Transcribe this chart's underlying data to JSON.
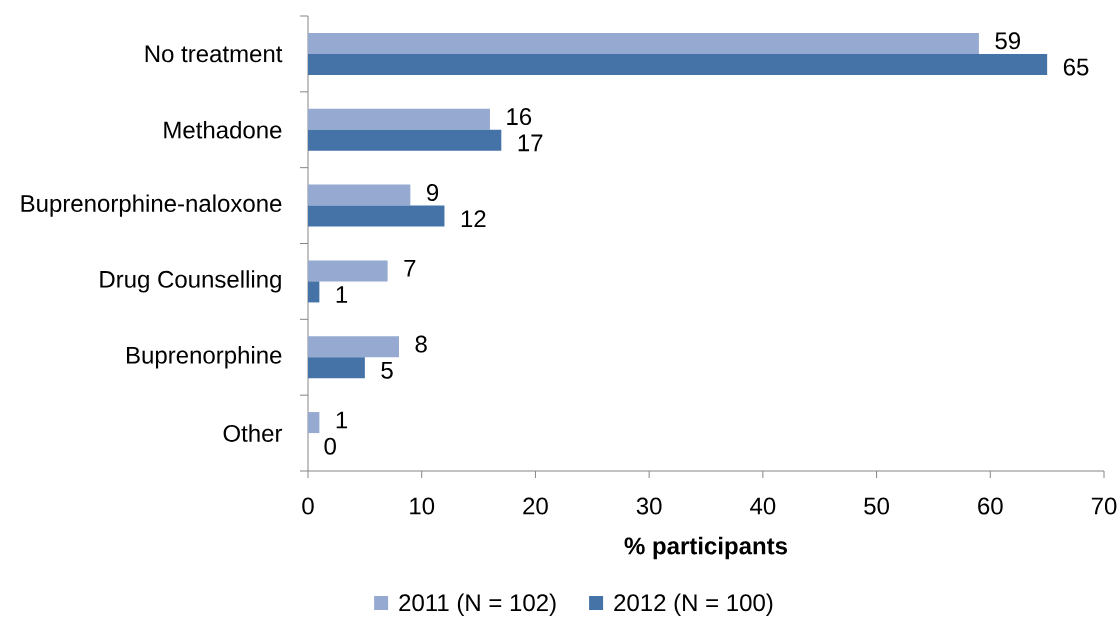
{
  "chart_data": {
    "type": "bar",
    "orientation": "horizontal",
    "categories": [
      "No treatment",
      "Methadone",
      "Buprenorphine-naloxone",
      "Drug Counselling",
      "Buprenorphine",
      "Other"
    ],
    "series": [
      {
        "name": "2011 (N = 102)",
        "color": "#95a9d1",
        "values": [
          59,
          16,
          9,
          7,
          8,
          1
        ]
      },
      {
        "name": "2012 (N = 100)",
        "color": "#4573a8",
        "values": [
          65,
          17,
          12,
          1,
          5,
          0
        ]
      }
    ],
    "xlabel": "% participants",
    "xlim": [
      0,
      70
    ],
    "xticks": [
      0,
      10,
      20,
      30,
      40,
      50,
      60,
      70
    ],
    "data_labels": true,
    "legend": "bottom"
  }
}
